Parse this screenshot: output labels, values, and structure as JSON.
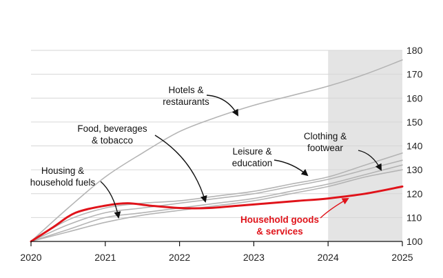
{
  "chart_data": {
    "type": "line",
    "title": "",
    "xlabel": "",
    "ylabel": "",
    "xlim": [
      2020,
      2025
    ],
    "ylim": [
      100,
      180
    ],
    "x_ticks": [
      2020,
      2021,
      2022,
      2023,
      2024,
      2025
    ],
    "y_ticks": [
      100,
      110,
      120,
      130,
      140,
      150,
      160,
      170,
      180
    ],
    "grid": "horizontal",
    "shaded_region": [
      2024,
      2025
    ],
    "colors": {
      "highlight": "#e0131a",
      "other": "#b4b4b4",
      "shade": "#e4e4e4",
      "grid": "#d6d6d6"
    },
    "series": [
      {
        "name": "Hotels & restaurants",
        "highlight": false,
        "x": [
          2020,
          2020.5,
          2021,
          2021.5,
          2022,
          2022.5,
          2023,
          2023.5,
          2024,
          2024.5,
          2025
        ],
        "y": [
          100,
          114,
          127,
          137,
          146,
          152,
          157,
          161,
          165,
          170,
          176
        ]
      },
      {
        "name": "Food, beverages & tobacco",
        "highlight": false,
        "x": [
          2020,
          2020.5,
          2021,
          2021.5,
          2022,
          2022.5,
          2023,
          2023.5,
          2024,
          2024.5,
          2025
        ],
        "y": [
          100,
          107,
          112,
          114,
          116,
          118,
          120,
          123,
          126,
          130,
          134
        ]
      },
      {
        "name": "Leisure & education",
        "highlight": false,
        "x": [
          2020,
          2020.5,
          2021,
          2021.5,
          2022,
          2022.5,
          2023,
          2023.5,
          2024,
          2024.5,
          2025
        ],
        "y": [
          100,
          109,
          114,
          116,
          117,
          119,
          121,
          124,
          127,
          132,
          137
        ]
      },
      {
        "name": "Clothing & footwear",
        "highlight": false,
        "x": [
          2020,
          2020.5,
          2021,
          2021.5,
          2022,
          2022.5,
          2023,
          2023.5,
          2024,
          2024.5,
          2025
        ],
        "y": [
          100,
          105,
          110,
          112,
          114,
          116,
          118,
          121,
          124,
          128,
          132
        ]
      },
      {
        "name": "Housing & household fuels",
        "highlight": false,
        "x": [
          2020,
          2020.5,
          2021,
          2021.5,
          2022,
          2022.5,
          2023,
          2023.5,
          2024,
          2024.5,
          2025
        ],
        "y": [
          100,
          104,
          108,
          111,
          113,
          115,
          117,
          120,
          123,
          127,
          130
        ]
      },
      {
        "name": "Household goods & services",
        "highlight": true,
        "x": [
          2020,
          2020.3,
          2020.6,
          2021,
          2021.3,
          2021.6,
          2022,
          2022.4,
          2022.8,
          2023.2,
          2023.6,
          2024,
          2024.5,
          2025
        ],
        "y": [
          100,
          106,
          112,
          115,
          116,
          115,
          114,
          114,
          115,
          116,
          117,
          118,
          120,
          123
        ]
      }
    ],
    "annotations": [
      {
        "series": "Hotels & restaurants",
        "lines": [
          "Hotels &",
          "restaurants"
        ]
      },
      {
        "series": "Food, beverages & tobacco",
        "lines": [
          "Food, beverages",
          "& tobacco"
        ]
      },
      {
        "series": "Leisure & education",
        "lines": [
          "Leisure &",
          "education"
        ]
      },
      {
        "series": "Clothing & footwear",
        "lines": [
          "Clothing &",
          "footwear"
        ]
      },
      {
        "series": "Housing & household fuels",
        "lines": [
          "Housing &",
          "household fuels"
        ]
      },
      {
        "series": "Household goods & services",
        "lines": [
          "Household goods",
          "& services"
        ]
      }
    ]
  }
}
